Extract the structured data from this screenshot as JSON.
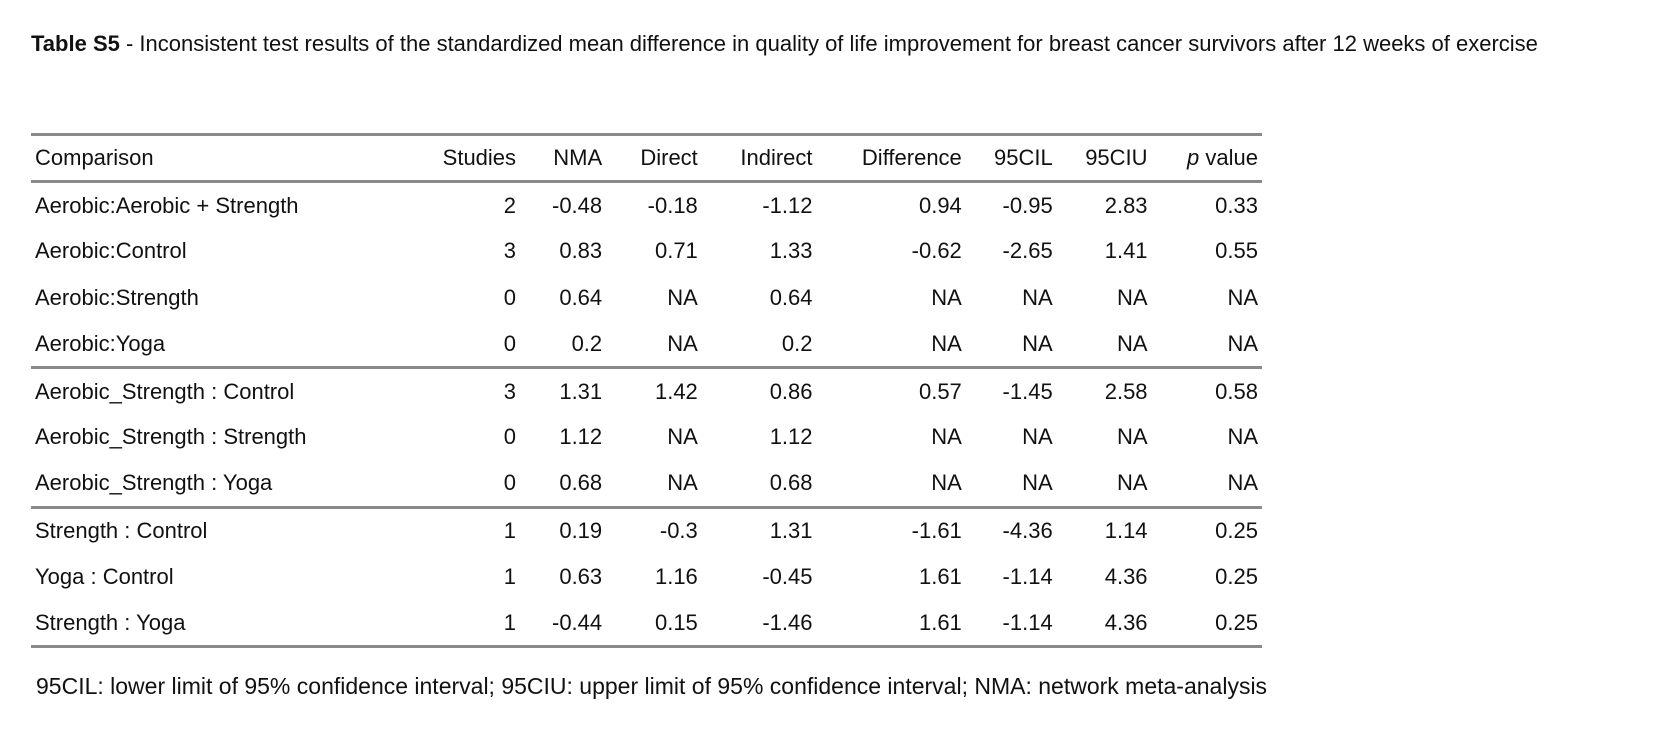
{
  "caption": {
    "label": "Table S5",
    "separator": " - ",
    "text": "Inconsistent test results of the standardized mean difference in quality of life improvement for breast cancer survivors after 12 weeks of exercise"
  },
  "table": {
    "headers": {
      "comparison": "Comparison",
      "studies": "Studies",
      "nma": "NMA",
      "direct": "Direct",
      "indirect": "Indirect",
      "difference": "Difference",
      "cil": "95CIL",
      "ciu": "95CIU",
      "p_italic": "p",
      "p_rest": " value"
    },
    "rows": [
      {
        "comparison": "Aerobic:Aerobic + Strength",
        "studies": "2",
        "nma": "-0.48",
        "direct": "-0.18",
        "indirect": "-1.12",
        "difference": "0.94",
        "cil": "-0.95",
        "ciu": "2.83",
        "p": "0.33"
      },
      {
        "comparison": "Aerobic:Control",
        "studies": "3",
        "nma": "0.83",
        "direct": "0.71",
        "indirect": "1.33",
        "difference": "-0.62",
        "cil": "-2.65",
        "ciu": "1.41",
        "p": "0.55"
      },
      {
        "comparison": "Aerobic:Strength",
        "studies": "0",
        "nma": "0.64",
        "direct": "NA",
        "indirect": "0.64",
        "difference": "NA",
        "cil": "NA",
        "ciu": "NA",
        "p": "NA"
      },
      {
        "comparison": "Aerobic:Yoga",
        "studies": "0",
        "nma": "0.2",
        "direct": "NA",
        "indirect": "0.2",
        "difference": "NA",
        "cil": "NA",
        "ciu": "NA",
        "p": "NA"
      },
      {
        "comparison": "Aerobic_Strength : Control",
        "studies": "3",
        "nma": "1.31",
        "direct": "1.42",
        "indirect": "0.86",
        "difference": "0.57",
        "cil": "-1.45",
        "ciu": "2.58",
        "p": "0.58"
      },
      {
        "comparison": "Aerobic_Strength : Strength",
        "studies": "0",
        "nma": "1.12",
        "direct": "NA",
        "indirect": "1.12",
        "difference": "NA",
        "cil": "NA",
        "ciu": "NA",
        "p": "NA"
      },
      {
        "comparison": "Aerobic_Strength : Yoga",
        "studies": "0",
        "nma": "0.68",
        "direct": "NA",
        "indirect": "0.68",
        "difference": "NA",
        "cil": "NA",
        "ciu": "NA",
        "p": "NA"
      },
      {
        "comparison": "Strength : Control",
        "studies": "1",
        "nma": "0.19",
        "direct": "-0.3",
        "indirect": "1.31",
        "difference": "-1.61",
        "cil": "-4.36",
        "ciu": "1.14",
        "p": "0.25"
      },
      {
        "comparison": "Yoga : Control",
        "studies": "1",
        "nma": "0.63",
        "direct": "1.16",
        "indirect": "-0.45",
        "difference": "1.61",
        "cil": "-1.14",
        "ciu": "4.36",
        "p": "0.25"
      },
      {
        "comparison": "Strength : Yoga",
        "studies": "1",
        "nma": "-0.44",
        "direct": "0.15",
        "indirect": "-1.46",
        "difference": "1.61",
        "cil": "-1.14",
        "ciu": "4.36",
        "p": "0.25"
      }
    ]
  },
  "footnote": "95CIL: lower limit of 95% confidence interval; 95CIU: upper limit of 95% confidence interval; NMA: network meta-analysis"
}
